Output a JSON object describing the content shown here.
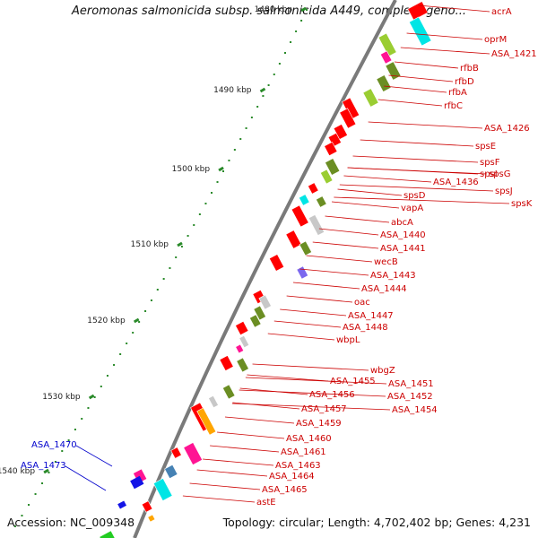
{
  "title": "Aeromonas salmonicida subsp. salmonicida A449, complete geno...",
  "footer": {
    "accession": "Accession: NC_009348",
    "topology": "Topology: circular; Length: 4,702,402 bp; Genes: 4,231"
  },
  "colors": {
    "backbone": "#7a7a7a",
    "forward_gene_label": "#cc0000",
    "reverse_gene_label": "#0000cc",
    "tick": "#2a8a2a",
    "gene_red": "#ff0000",
    "gene_olive": "#6b8e23",
    "gene_lime": "#9acd32",
    "gene_cyan": "#00e5e5",
    "gene_magenta": "#ff1493",
    "gene_grey": "#c8c8c8",
    "gene_orange": "#ffa500",
    "gene_blue": "#1414e6",
    "gene_purple": "#7b68ee",
    "gene_steelblue": "#4682b4",
    "gene_green": "#22cc22"
  },
  "ticks": [
    {
      "label": "1480 kbp"
    },
    {
      "label": "1490 kbp"
    },
    {
      "label": "1500 kbp"
    },
    {
      "label": "1510 kbp"
    },
    {
      "label": "1520 kbp"
    },
    {
      "label": "1530 kbp"
    },
    {
      "label": "1540 kbp"
    }
  ],
  "gene_labels_forward": [
    "acrA",
    "oprM",
    "ASA_1421",
    "rfbB",
    "rfbD",
    "rfbA",
    "rfbC",
    "ASA_1426",
    "spsE",
    "spsF",
    "spsI",
    "spsG",
    "spsJ",
    "spsK",
    "ASA_1436",
    "spsD",
    "vapA",
    "abcA",
    "ASA_1440",
    "ASA_1441",
    "wecB",
    "ASA_1443",
    "ASA_1444",
    "oac",
    "ASA_1447",
    "ASA_1448",
    "wbpL",
    "wbgZ",
    "ASA_1451",
    "ASA_1452",
    "ASA_1454",
    "ASA_1455",
    "ASA_1456",
    "ASA_1457",
    "ASA_1459",
    "ASA_1460",
    "ASA_1461",
    "ASA_1463",
    "ASA_1464",
    "ASA_1465",
    "astE"
  ],
  "gene_labels_reverse": [
    "ASA_1470",
    "ASA_1473"
  ]
}
